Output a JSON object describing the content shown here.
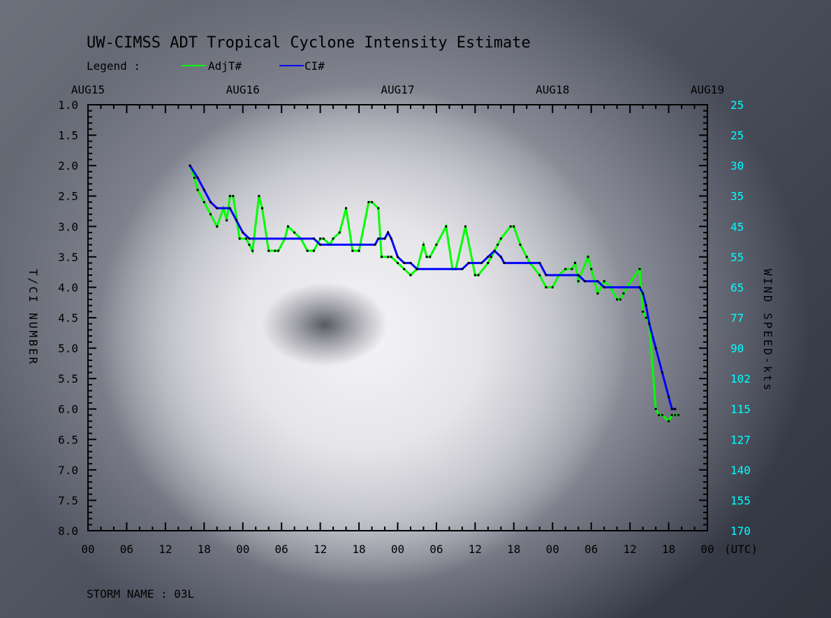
{
  "chart_data": {
    "type": "line",
    "title": "UW-CIMSS ADT Tropical Cyclone Intensity Estimate",
    "legend_label": "Legend :",
    "legend": [
      "AdjT#",
      "CI#"
    ],
    "ylabel": "T/CI NUMBER",
    "ylabel_right": "WIND SPEED-kts",
    "xlabel": "(UTC)",
    "storm_name": "STORM NAME : 03L",
    "date_labels": [
      "AUG15",
      "AUG16",
      "AUG17",
      "AUG18",
      "AUG19"
    ],
    "x_tick_labels": [
      "00",
      "06",
      "12",
      "18",
      "00",
      "06",
      "12",
      "18",
      "00",
      "06",
      "12",
      "18",
      "00",
      "06",
      "12",
      "18",
      "00"
    ],
    "xlim_hours": [
      0,
      96
    ],
    "ylim": [
      1.0,
      8.0
    ],
    "y_tick_labels": [
      "1.0",
      "1.5",
      "2.0",
      "2.5",
      "3.0",
      "3.5",
      "4.0",
      "4.5",
      "5.0",
      "5.5",
      "6.0",
      "6.5",
      "7.0",
      "7.5",
      "8.0"
    ],
    "wind_tick_labels": [
      "25",
      "25",
      "30",
      "35",
      "45",
      "55",
      "65",
      "77",
      "90",
      "102",
      "115",
      "127",
      "140",
      "155",
      "170"
    ],
    "colors": {
      "adjt": "#00ff00",
      "ci": "#0000ff",
      "wind": "#00ffff",
      "axis": "#000000"
    },
    "series": [
      {
        "name": "AdjT#",
        "points": [
          [
            15.8,
            2.0
          ],
          [
            16.5,
            2.2
          ],
          [
            17,
            2.4
          ],
          [
            18,
            2.6
          ],
          [
            19,
            2.8
          ],
          [
            20,
            3.0
          ],
          [
            21,
            2.7
          ],
          [
            21.5,
            2.9
          ],
          [
            22,
            2.5
          ],
          [
            22.5,
            2.5
          ],
          [
            23.5,
            3.2
          ],
          [
            24.5,
            3.2
          ],
          [
            25,
            3.3
          ],
          [
            25.5,
            3.4
          ],
          [
            26.5,
            2.5
          ],
          [
            27,
            2.7
          ],
          [
            28,
            3.4
          ],
          [
            29,
            3.4
          ],
          [
            29.5,
            3.4
          ],
          [
            30.5,
            3.2
          ],
          [
            31,
            3.0
          ],
          [
            32,
            3.1
          ],
          [
            33,
            3.2
          ],
          [
            34,
            3.4
          ],
          [
            35,
            3.4
          ],
          [
            36,
            3.2
          ],
          [
            36.5,
            3.2
          ],
          [
            37.5,
            3.3
          ],
          [
            38,
            3.2
          ],
          [
            39,
            3.1
          ],
          [
            40,
            2.7
          ],
          [
            41,
            3.4
          ],
          [
            42,
            3.4
          ],
          [
            43.5,
            2.6
          ],
          [
            44,
            2.6
          ],
          [
            45,
            2.7
          ],
          [
            45.5,
            3.5
          ],
          [
            46.5,
            3.5
          ],
          [
            47,
            3.5
          ],
          [
            48,
            3.6
          ],
          [
            49,
            3.7
          ],
          [
            50,
            3.8
          ],
          [
            51,
            3.7
          ],
          [
            52,
            3.3
          ],
          [
            52.5,
            3.5
          ],
          [
            53,
            3.5
          ],
          [
            54,
            3.3
          ],
          [
            55.5,
            3.0
          ],
          [
            56.5,
            3.7
          ],
          [
            57,
            3.7
          ],
          [
            58.5,
            3.0
          ],
          [
            60,
            3.8
          ],
          [
            60.5,
            3.8
          ],
          [
            62,
            3.6
          ],
          [
            62.5,
            3.5
          ],
          [
            63.5,
            3.3
          ],
          [
            64,
            3.2
          ],
          [
            65.5,
            3.0
          ],
          [
            66,
            3.0
          ],
          [
            67,
            3.3
          ],
          [
            68,
            3.5
          ],
          [
            68.5,
            3.6
          ],
          [
            70,
            3.8
          ],
          [
            71,
            4.0
          ],
          [
            72,
            4.0
          ],
          [
            73,
            3.8
          ],
          [
            74,
            3.7
          ],
          [
            75,
            3.7
          ],
          [
            75.5,
            3.6
          ],
          [
            76,
            3.9
          ],
          [
            77.5,
            3.5
          ],
          [
            78,
            3.7
          ],
          [
            79,
            4.1
          ],
          [
            80,
            3.9
          ],
          [
            81,
            4.0
          ],
          [
            82,
            4.2
          ],
          [
            82.5,
            4.2
          ],
          [
            83,
            4.1
          ],
          [
            83.5,
            4.0
          ],
          [
            85.5,
            3.7
          ],
          [
            86,
            4.4
          ],
          [
            86.5,
            4.5
          ],
          [
            87,
            4.6
          ],
          [
            88,
            6.0
          ],
          [
            88.5,
            6.1
          ],
          [
            89,
            6.1
          ],
          [
            90,
            6.2
          ],
          [
            90.5,
            6.1
          ],
          [
            91,
            6.1
          ],
          [
            91.5,
            6.1
          ]
        ]
      },
      {
        "name": "CI#",
        "points": [
          [
            15.8,
            2.0
          ],
          [
            17,
            2.2
          ],
          [
            18,
            2.4
          ],
          [
            19,
            2.6
          ],
          [
            20,
            2.7
          ],
          [
            22,
            2.7
          ],
          [
            23,
            2.9
          ],
          [
            24,
            3.1
          ],
          [
            25,
            3.2
          ],
          [
            35,
            3.2
          ],
          [
            36,
            3.3
          ],
          [
            44.5,
            3.3
          ],
          [
            45,
            3.2
          ],
          [
            46,
            3.2
          ],
          [
            46.5,
            3.1
          ],
          [
            47,
            3.2
          ],
          [
            48,
            3.5
          ],
          [
            49,
            3.6
          ],
          [
            50,
            3.6
          ],
          [
            51,
            3.7
          ],
          [
            58,
            3.7
          ],
          [
            59,
            3.6
          ],
          [
            61,
            3.6
          ],
          [
            62,
            3.5
          ],
          [
            63,
            3.4
          ],
          [
            64,
            3.5
          ],
          [
            64.5,
            3.6
          ],
          [
            70,
            3.6
          ],
          [
            71,
            3.8
          ],
          [
            76,
            3.8
          ],
          [
            77,
            3.9
          ],
          [
            79,
            3.9
          ],
          [
            80,
            4.0
          ],
          [
            85.5,
            4.0
          ],
          [
            86,
            4.1
          ],
          [
            86.5,
            4.3
          ],
          [
            87,
            4.6
          ],
          [
            88,
            5.0
          ],
          [
            89,
            5.4
          ],
          [
            90,
            5.8
          ],
          [
            90.5,
            6.0
          ],
          [
            91,
            6.0
          ]
        ]
      }
    ]
  }
}
